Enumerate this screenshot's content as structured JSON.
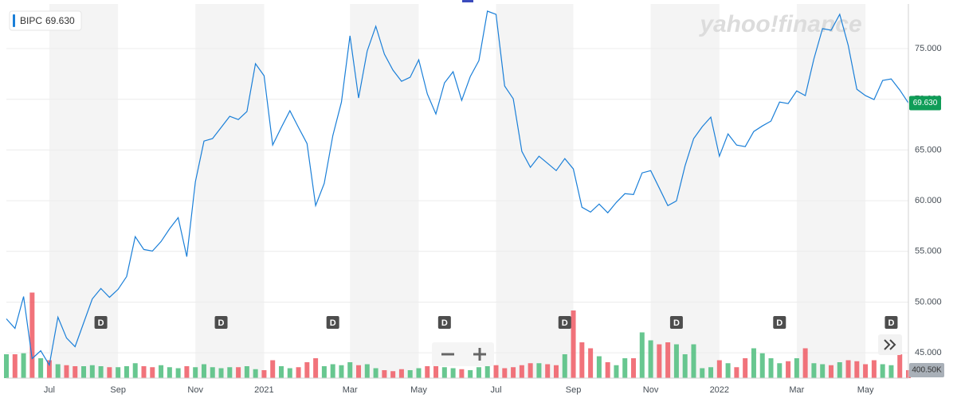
{
  "chart_data": {
    "type": "line",
    "symbol": "BIPC",
    "last_price_label": "69.630",
    "last_volume_label": "400.50K",
    "watermark": "yahoo!finance",
    "line_color": "#1a7fd8",
    "up_color": "#4dbd7d",
    "down_color": "#ef5b64",
    "badge_color": "#0f9d58",
    "grid": true,
    "ylim": [
      42.5,
      79.4
    ],
    "yticks": [
      {
        "value": 45,
        "label": "45.000"
      },
      {
        "value": 50,
        "label": "50.000"
      },
      {
        "value": 55,
        "label": "55.000"
      },
      {
        "value": 60,
        "label": "60.000"
      },
      {
        "value": 65,
        "label": "65.000"
      },
      {
        "value": 70,
        "label": "70.000"
      },
      {
        "value": 75,
        "label": "75.000"
      }
    ],
    "volume_lim": [
      0,
      18800
    ],
    "categories": [
      null,
      null,
      null,
      null,
      null,
      "Jul",
      null,
      null,
      null,
      null,
      null,
      null,
      null,
      "Sep",
      null,
      null,
      null,
      null,
      null,
      null,
      null,
      null,
      "Nov",
      null,
      null,
      null,
      null,
      null,
      null,
      null,
      "2021",
      null,
      null,
      null,
      null,
      null,
      null,
      null,
      null,
      null,
      "Mar",
      null,
      null,
      null,
      null,
      null,
      null,
      null,
      "May",
      null,
      null,
      null,
      null,
      null,
      null,
      null,
      null,
      "Jul",
      null,
      null,
      null,
      null,
      null,
      null,
      null,
      null,
      "Sep",
      null,
      null,
      null,
      null,
      null,
      null,
      null,
      null,
      "Nov",
      null,
      null,
      null,
      null,
      null,
      null,
      null,
      "2022",
      null,
      null,
      null,
      null,
      null,
      null,
      null,
      null,
      "Mar",
      null,
      null,
      null,
      null,
      null,
      null,
      null,
      "May",
      null,
      null,
      null,
      null,
      null
    ],
    "events": [
      null,
      null,
      null,
      null,
      null,
      null,
      null,
      null,
      null,
      null,
      null,
      "D",
      null,
      null,
      null,
      null,
      null,
      null,
      null,
      null,
      null,
      null,
      null,
      null,
      null,
      "D",
      null,
      null,
      null,
      null,
      null,
      null,
      null,
      null,
      null,
      null,
      null,
      null,
      "D",
      null,
      null,
      null,
      null,
      null,
      null,
      null,
      null,
      null,
      null,
      null,
      null,
      "D",
      null,
      null,
      null,
      null,
      null,
      null,
      null,
      null,
      null,
      null,
      null,
      null,
      null,
      "D",
      null,
      null,
      null,
      null,
      null,
      null,
      null,
      null,
      null,
      null,
      null,
      null,
      "D",
      null,
      null,
      null,
      null,
      null,
      null,
      null,
      null,
      null,
      null,
      null,
      "D",
      null,
      null,
      null,
      null,
      null,
      null,
      null,
      null,
      null,
      null,
      null,
      null,
      "D",
      null,
      null
    ],
    "values": [
      48.35,
      47.41,
      50.55,
      44.42,
      45.2,
      43.79,
      48.51,
      46.46,
      45.6,
      47.96,
      50.31,
      51.34,
      50.47,
      51.26,
      52.52,
      56.45,
      55.19,
      55.03,
      55.97,
      57.23,
      58.33,
      54.48,
      61.87,
      65.88,
      66.12,
      67.22,
      68.32,
      68.0,
      68.79,
      73.51,
      72.33,
      65.49,
      67.22,
      68.87,
      67.22,
      65.64,
      59.51,
      61.71,
      66.43,
      69.73,
      76.26,
      70.13,
      74.76,
      77.2,
      74.45,
      72.88,
      71.78,
      72.17,
      73.9,
      70.52,
      68.55,
      71.62,
      72.72,
      69.89,
      72.25,
      73.82,
      78.69,
      78.38,
      71.31,
      70.05,
      64.86,
      63.29,
      64.39,
      63.68,
      62.97,
      64.15,
      63.13,
      59.36,
      58.88,
      59.67,
      58.81,
      59.83,
      60.69,
      60.61,
      62.74,
      62.97,
      61.24,
      59.51,
      59.98,
      63.44,
      66.12,
      67.3,
      68.24,
      64.39,
      66.59,
      65.49,
      65.33,
      66.82,
      67.37,
      67.85,
      69.73,
      69.58,
      70.83,
      70.36,
      73.98,
      76.97,
      76.81,
      78.38,
      75.31,
      70.99,
      70.36,
      69.97,
      71.86,
      72.01,
      70.91,
      69.63
    ],
    "volume": [
      1200,
      1200,
      1250,
      4300,
      1000,
      900,
      700,
      650,
      600,
      600,
      650,
      600,
      550,
      550,
      600,
      750,
      600,
      550,
      650,
      550,
      500,
      600,
      550,
      700,
      550,
      500,
      550,
      550,
      600,
      450,
      400,
      900,
      600,
      500,
      550,
      800,
      1000,
      600,
      700,
      650,
      800,
      650,
      700,
      500,
      400,
      350,
      450,
      400,
      500,
      600,
      650,
      550,
      500,
      450,
      400,
      550,
      600,
      650,
      500,
      550,
      650,
      750,
      750,
      700,
      650,
      1200,
      3400,
      1800,
      1500,
      1100,
      800,
      650,
      1000,
      1000,
      2300,
      1900,
      1700,
      1800,
      1700,
      1200,
      1700,
      500,
      550,
      900,
      750,
      550,
      1000,
      1500,
      1250,
      1000,
      750,
      850,
      1000,
      1500,
      750,
      700,
      650,
      800,
      900,
      850,
      700,
      900,
      700,
      650,
      1200,
      400.5
    ]
  }
}
